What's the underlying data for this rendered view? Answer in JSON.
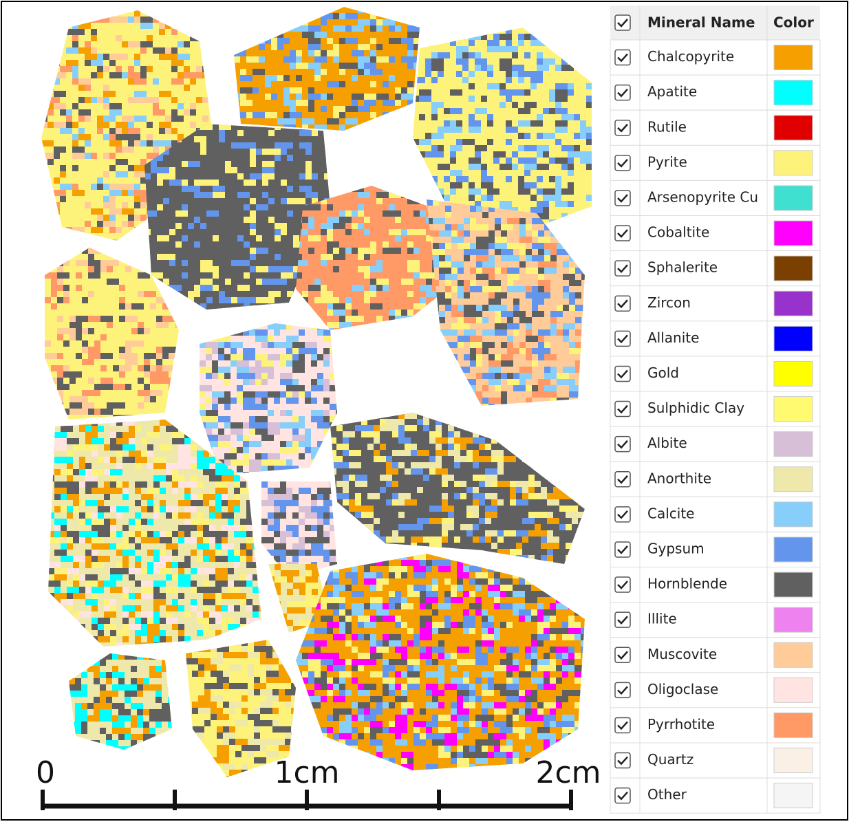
{
  "legend": {
    "columns": [
      "Mineral Name",
      "Color"
    ],
    "rows": [
      {
        "name": "Chalcopyrite",
        "color": "#f5a000"
      },
      {
        "name": "Apatite",
        "color": "#00ffff"
      },
      {
        "name": "Rutile",
        "color": "#e00000"
      },
      {
        "name": "Pyrite",
        "color": "#fdf37a"
      },
      {
        "name": "Arsenopyrite Cu",
        "color": "#40e0d0"
      },
      {
        "name": "Cobaltite",
        "color": "#ff00ff"
      },
      {
        "name": "Sphalerite",
        "color": "#7b3f00"
      },
      {
        "name": "Zircon",
        "color": "#9932cc"
      },
      {
        "name": "Allanite",
        "color": "#0000ff"
      },
      {
        "name": "Gold",
        "color": "#ffff00"
      },
      {
        "name": "Sulphidic Clay",
        "color": "#fffa70"
      },
      {
        "name": "Albite",
        "color": "#d8bfd8"
      },
      {
        "name": "Anorthite",
        "color": "#eee8aa"
      },
      {
        "name": "Calcite",
        "color": "#87cefa"
      },
      {
        "name": "Gypsum",
        "color": "#6495ed"
      },
      {
        "name": "Hornblende",
        "color": "#606060"
      },
      {
        "name": "Illite",
        "color": "#ee82ee"
      },
      {
        "name": "Muscovite",
        "color": "#ffcc99"
      },
      {
        "name": "Oligoclase",
        "color": "#ffe4e1"
      },
      {
        "name": "Pyrrhotite",
        "color": "#ff9966"
      },
      {
        "name": "Quartz",
        "color": "#faf0e6"
      },
      {
        "name": "Other",
        "color": "#f5f5f5"
      }
    ]
  },
  "scale_bar": {
    "labels": [
      "0",
      "1cm",
      "2cm"
    ]
  }
}
